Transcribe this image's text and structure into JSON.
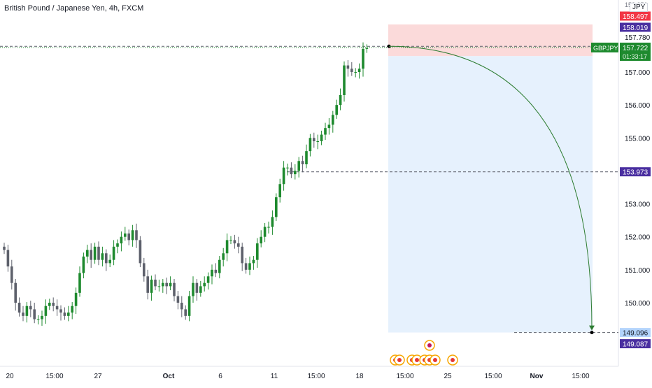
{
  "header": {
    "title": "British Pound / Japanese Yen, 4h, FXCM",
    "currency": "JPY"
  },
  "colors": {
    "up": "#26a69a",
    "up_dark": "#1e8a2e",
    "down": "#5d606b",
    "entry_line": "#5d606b",
    "profit_zone": "#e3f0fd",
    "loss_zone": "#fad4d4",
    "arc": "#2e7d32",
    "purple": "#4a2fa0",
    "red": "#f23645",
    "green": "#1e8a2e",
    "blue_light": "#b3d4fc"
  },
  "price_labels": {
    "top_cut": "158.850",
    "stop_high": "158.497",
    "stop": "158.019",
    "entry": "157.780",
    "symbol": "GBPJPY",
    "last": "157.722",
    "countdown": "01:33:17",
    "mid_target": "153.973",
    "target": "149.096",
    "target2": "149.087"
  },
  "chart_data": {
    "type": "candlestick",
    "title": "British Pound / Japanese Yen, 4h, FXCM",
    "ylim": [
      148.2,
      158.9
    ],
    "y_ticks": [
      157.0,
      156.0,
      155.0,
      154.0,
      153.0,
      152.0,
      151.0,
      150.0
    ],
    "y_tick_labels": [
      "157.000",
      "156.000",
      "155.000",
      "154.000",
      "153.000",
      "152.000",
      "151.000",
      "150.000"
    ],
    "x_tick_labels": [
      "20",
      "15:00",
      "27",
      "Oct",
      "6",
      "11",
      "15:00",
      "18",
      "15:00",
      "25",
      "15:00",
      "Nov",
      "15:00"
    ],
    "closes": [
      151.6,
      151.1,
      150.6,
      150.0,
      149.7,
      149.6,
      149.9,
      149.8,
      149.5,
      149.5,
      149.6,
      149.9,
      150.0,
      149.9,
      149.8,
      149.7,
      149.6,
      149.7,
      149.9,
      150.3,
      150.9,
      151.4,
      151.6,
      151.3,
      151.7,
      151.3,
      151.5,
      151.2,
      151.3,
      151.7,
      151.8,
      152.0,
      152.1,
      151.9,
      152.2,
      151.9,
      151.2,
      150.8,
      150.3,
      150.7,
      150.5,
      150.5,
      150.6,
      150.5,
      150.6,
      150.2,
      150.0,
      149.8,
      149.6,
      150.2,
      150.6,
      150.3,
      150.5,
      150.6,
      150.8,
      151.0,
      150.9,
      151.3,
      151.5,
      151.9,
      151.9,
      151.8,
      151.7,
      151.2,
      151.0,
      151.2,
      151.3,
      151.8,
      152.0,
      152.3,
      152.3,
      152.6,
      153.2,
      153.6,
      154.1,
      154.1,
      153.9,
      154.0,
      154.3,
      154.2,
      154.6,
      155.0,
      154.9,
      154.9,
      155.1,
      155.3,
      155.4,
      155.7,
      156.0,
      156.3,
      157.2,
      157.1,
      157.0,
      157.0,
      157.1,
      157.7,
      157.72
    ],
    "annotations": {
      "position": "short",
      "entry_price": 157.78,
      "stop_price": 158.019,
      "target_price": 149.096,
      "mid_level": 153.973,
      "events": 9
    }
  }
}
